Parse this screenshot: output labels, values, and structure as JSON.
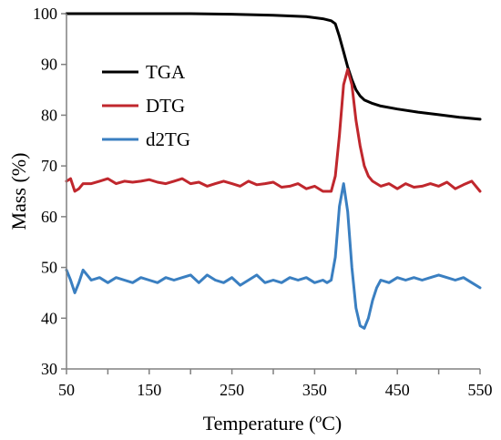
{
  "chart_data": {
    "type": "line",
    "xlabel": "Temperature (ºC)",
    "ylabel": "Mass (%)",
    "xlim": [
      50,
      550
    ],
    "ylim": [
      30,
      100
    ],
    "x_ticks": [
      50,
      150,
      250,
      350,
      450,
      550
    ],
    "y_ticks": [
      30,
      40,
      50,
      60,
      70,
      80,
      90,
      100
    ],
    "x_minor_step": 50,
    "grid": false,
    "legend_position": "top-left",
    "series": [
      {
        "name": "TGA",
        "color": "#000000",
        "x": [
          50,
          100,
          150,
          200,
          250,
          300,
          340,
          360,
          370,
          375,
          380,
          385,
          390,
          395,
          400,
          405,
          410,
          420,
          430,
          450,
          475,
          500,
          525,
          550
        ],
        "y": [
          100,
          100,
          100,
          100,
          99.9,
          99.7,
          99.4,
          99.0,
          98.6,
          98.0,
          95.5,
          92.5,
          89.5,
          87.0,
          85.0,
          83.8,
          83.0,
          82.3,
          81.8,
          81.2,
          80.6,
          80.1,
          79.6,
          79.2
        ]
      },
      {
        "name": "DTG",
        "color": "#c0272d",
        "x": [
          50,
          55,
          60,
          65,
          70,
          80,
          90,
          100,
          110,
          120,
          130,
          140,
          150,
          160,
          170,
          180,
          190,
          200,
          210,
          220,
          230,
          240,
          250,
          260,
          270,
          280,
          290,
          300,
          310,
          320,
          330,
          340,
          350,
          360,
          370,
          375,
          380,
          385,
          390,
          395,
          400,
          405,
          410,
          415,
          420,
          430,
          440,
          450,
          460,
          470,
          480,
          490,
          500,
          510,
          520,
          530,
          540,
          550
        ],
        "y": [
          67.0,
          67.5,
          65.0,
          65.5,
          66.5,
          66.5,
          67.0,
          67.5,
          66.5,
          67.0,
          66.8,
          67.0,
          67.3,
          66.8,
          66.5,
          67.0,
          67.5,
          66.5,
          66.8,
          66.0,
          66.5,
          67.0,
          66.5,
          66.0,
          67.0,
          66.3,
          66.5,
          66.8,
          65.8,
          66.0,
          66.5,
          65.5,
          66.0,
          65.0,
          65.0,
          68.0,
          76.0,
          86.0,
          89.0,
          86.0,
          79.0,
          74.0,
          70.0,
          68.0,
          67.0,
          66.0,
          66.5,
          65.5,
          66.5,
          65.8,
          66.0,
          66.5,
          66.0,
          66.8,
          65.5,
          66.3,
          67.0,
          65.0
        ]
      },
      {
        "name": "d2TG",
        "color": "#3a7fc1",
        "x": [
          50,
          55,
          60,
          65,
          70,
          75,
          80,
          90,
          100,
          110,
          120,
          130,
          140,
          150,
          160,
          170,
          180,
          190,
          200,
          210,
          220,
          230,
          240,
          250,
          260,
          270,
          280,
          290,
          300,
          310,
          320,
          330,
          340,
          350,
          360,
          365,
          370,
          375,
          380,
          385,
          390,
          395,
          400,
          405,
          410,
          415,
          420,
          425,
          430,
          440,
          450,
          460,
          470,
          480,
          490,
          500,
          510,
          520,
          530,
          540,
          550
        ],
        "y": [
          49.5,
          47.5,
          45.0,
          47.0,
          49.5,
          48.5,
          47.5,
          48.0,
          47.0,
          48.0,
          47.5,
          47.0,
          48.0,
          47.5,
          47.0,
          48.0,
          47.5,
          48.0,
          48.5,
          47.0,
          48.5,
          47.5,
          47.0,
          48.0,
          46.5,
          47.5,
          48.5,
          47.0,
          47.5,
          47.0,
          48.0,
          47.5,
          48.0,
          47.0,
          47.5,
          47.0,
          47.5,
          52.0,
          62.0,
          66.5,
          61.0,
          50.0,
          42.0,
          38.5,
          38.0,
          40.0,
          43.5,
          46.0,
          47.5,
          47.0,
          48.0,
          47.5,
          48.0,
          47.5,
          48.0,
          48.5,
          48.0,
          47.5,
          48.0,
          47.0,
          46.0
        ]
      }
    ]
  }
}
